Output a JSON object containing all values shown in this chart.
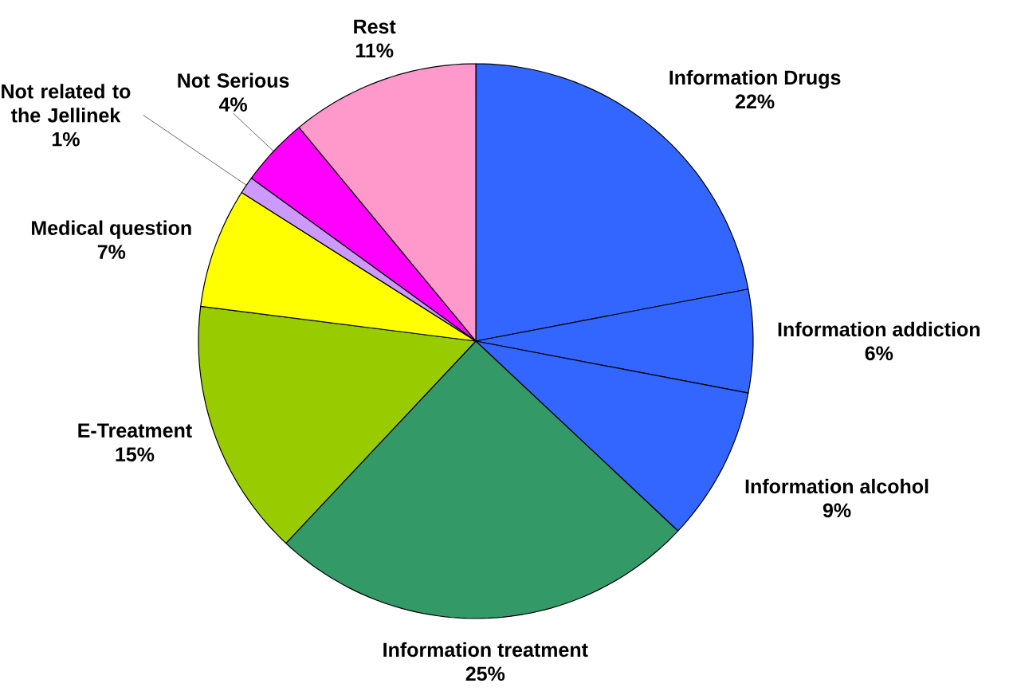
{
  "chart_data": {
    "type": "pie",
    "categories": [
      "Information Drugs",
      "Information addiction",
      "Information alcohol",
      "Information treatment",
      "E-Treatment",
      "Medical question",
      "Not related to the Jellinek",
      "Not Serious",
      "Rest"
    ],
    "values": [
      22,
      6,
      9,
      25,
      15,
      7,
      1,
      4,
      11
    ],
    "value_labels": [
      "22%",
      "6%",
      "9%",
      "25%",
      "15%",
      "7%",
      "1%",
      "4%",
      "11%"
    ],
    "colors": [
      "#3366ff",
      "#3366ff",
      "#3366ff",
      "#339966",
      "#99cc00",
      "#ffff00",
      "#cc99ff",
      "#ff00ff",
      "#ff99cc"
    ]
  }
}
